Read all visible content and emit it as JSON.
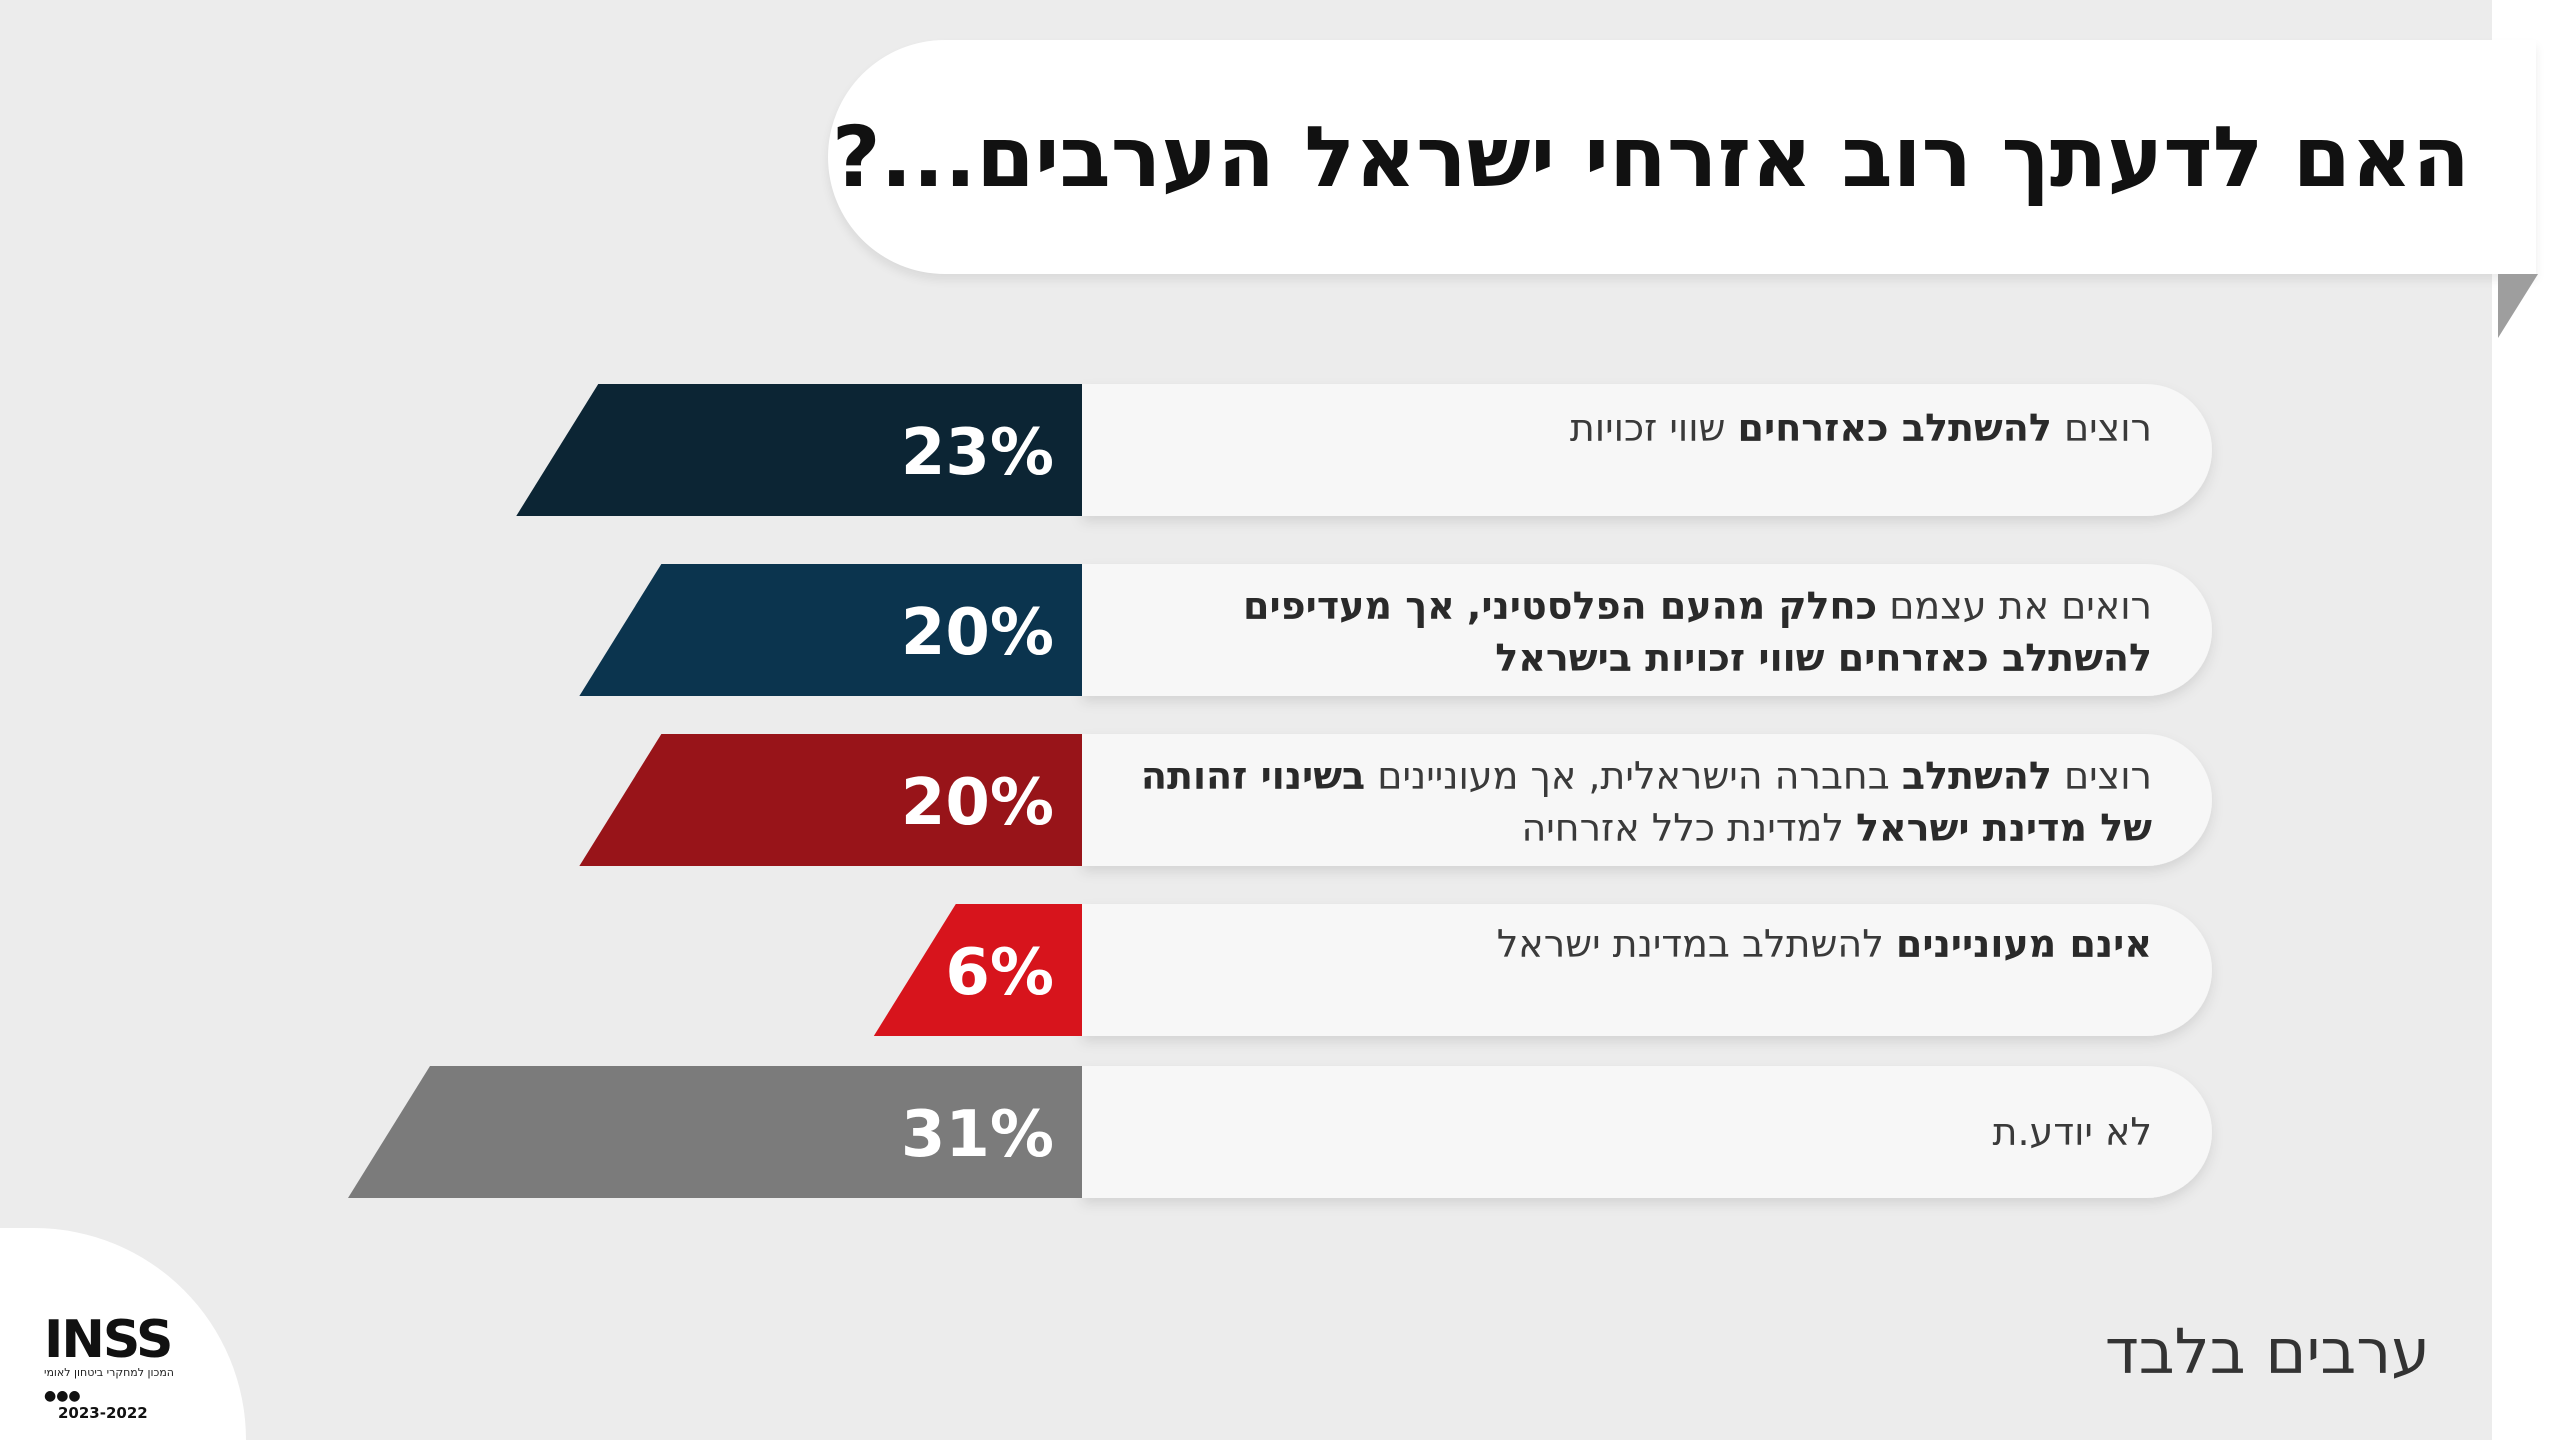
{
  "title": "האם לדעתך רוב אזרחי ישראל הערבים...?",
  "note": "ערבים בלבד",
  "logo": {
    "name": "INSS",
    "subtitle": "המכון למחקרי ביטחון לאומי",
    "years": "2023-2022"
  },
  "chart_data": {
    "type": "bar",
    "orientation": "horizontal",
    "categories": [
      "רוצים להשתלב כאזרחים שווי זכויות",
      "רואים את עצמם כחלק מהעם הפלסטיני, אך מעדיפים להשתלב כאזרחים שווי זכויות בישראל",
      "רוצים להשתלב בחברה הישראלית, אך מעוניינים בשינוי זהותה של מדינת ישראל למדינת כלל אזרחיה",
      "אינם מעוניינים להשתלב במדינת ישראל",
      "לא יודע.ת"
    ],
    "values": [
      23,
      20,
      20,
      6,
      31
    ],
    "value_labels": [
      "23%",
      "20%",
      "20%",
      "6%",
      "31%"
    ],
    "colors": [
      "#0c2534",
      "#0b344e",
      "#981419",
      "#d7141c",
      "#7b7b7b"
    ],
    "xlim": [
      0,
      31
    ]
  },
  "rows": [
    {
      "segments": [
        {
          "t": "רוצים ",
          "b": false
        },
        {
          "t": "להשתלב כאזרחים",
          "b": true
        },
        {
          "t": " שווי זכויות",
          "b": false
        }
      ]
    },
    {
      "segments": [
        {
          "t": "רואים את עצמם ",
          "b": false
        },
        {
          "t": "כחלק מהעם הפלסטיני,",
          "b": true
        },
        {
          "t": " ",
          "b": false
        },
        {
          "t": "אך מעדיפים להשתלב כאזרחים שווי זכויות בישראל",
          "b": true
        }
      ]
    },
    {
      "segments": [
        {
          "t": "רוצים ",
          "b": false
        },
        {
          "t": "להשתלב",
          "b": true
        },
        {
          "t": " בחברה הישראלית, אך מעוניינים ",
          "b": false
        },
        {
          "t": "בשינוי זהותה של מדינת ישראל",
          "b": true
        },
        {
          "t": " למדינת כלל אזרחיה",
          "b": false
        }
      ]
    },
    {
      "segments": [
        {
          "t": "אינם מעוניינים",
          "b": true
        },
        {
          "t": " להשתלב במדינת ישראל",
          "b": false
        }
      ]
    },
    {
      "segments": [
        {
          "t": "לא יודע.ת",
          "b": false
        }
      ]
    }
  ]
}
